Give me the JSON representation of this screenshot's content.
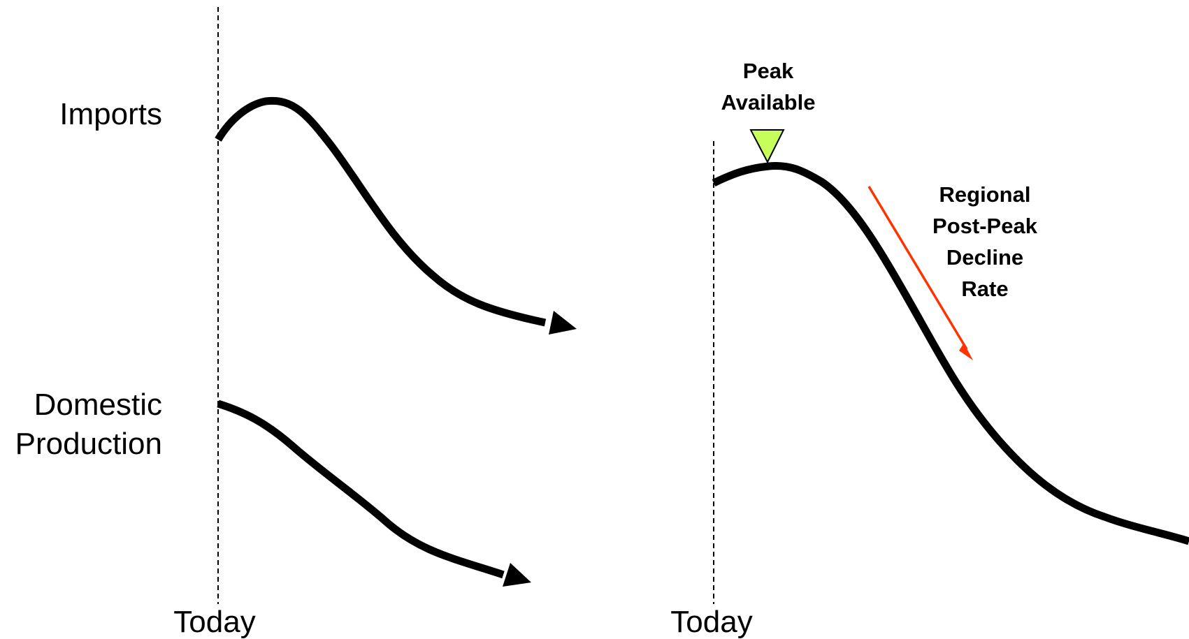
{
  "left_panel": {
    "imports_label": "Imports",
    "domestic_label_line1": "Domestic",
    "domestic_label_line2": "Production",
    "today_label": "Today"
  },
  "right_panel": {
    "today_label": "Today",
    "peak_label_line1": "Peak",
    "peak_label_line2": "Available",
    "decline_label_lines": [
      "Regional",
      "Post-Peak",
      "Decline",
      "Rate"
    ]
  },
  "colors": {
    "curve": "#000000",
    "peak_marker": "#c6ff5a",
    "decline_arrow": "#ff3300"
  },
  "icons": {
    "peak_marker": "downward-triangle-icon",
    "decline_arrow": "red-arrow-icon"
  }
}
